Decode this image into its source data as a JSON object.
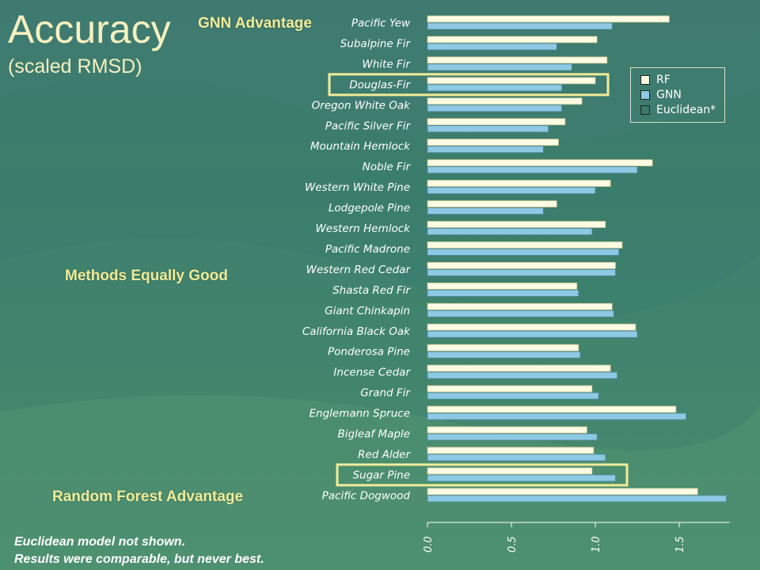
{
  "slide": {
    "title": "Accuracy",
    "subtitle": "(scaled RMSD)",
    "callouts": {
      "gnn": "GNN Advantage",
      "equal": "Methods Equally Good",
      "rf": "Random Forest Advantage"
    },
    "footnote": {
      "line1": "Euclidean model not shown.",
      "line2": "Results were comparable, but never best."
    }
  },
  "legend": {
    "entries": [
      {
        "label": "RF",
        "color": "#fdfbe3"
      },
      {
        "label": "GNN",
        "color": "#8dc9e3"
      },
      {
        "label": "Euclidean*",
        "color": "#3a7a68"
      }
    ]
  },
  "colors": {
    "rf": "#fdfbe3",
    "gnn": "#8dc9e3",
    "highlight": "#f0ec9a",
    "text_accent": "#f5f0c0"
  },
  "chart_data": {
    "type": "bar",
    "orientation": "horizontal",
    "categories": [
      "Pacific Yew",
      "Subalpine Fir",
      "White Fir",
      "Douglas-Fir",
      "Oregon White Oak",
      "Pacific Silver Fir",
      "Mountain Hemlock",
      "Noble Fir",
      "Western White Pine",
      "Lodgepole Pine",
      "Western Hemlock",
      "Pacific Madrone",
      "Western Red Cedar",
      "Shasta Red Fir",
      "Giant Chinkapin",
      "California Black Oak",
      "Ponderosa Pine",
      "Incense Cedar",
      "Grand Fir",
      "Englemann Spruce",
      "Bigleaf Maple",
      "Red Alder",
      "Sugar Pine",
      "Pacific Dogwood"
    ],
    "series": [
      {
        "name": "RF",
        "values": [
          1.44,
          1.01,
          1.07,
          1.0,
          0.92,
          0.82,
          0.78,
          1.34,
          1.09,
          0.77,
          1.06,
          1.16,
          1.12,
          0.89,
          1.1,
          1.24,
          0.9,
          1.09,
          0.98,
          1.48,
          0.95,
          0.99,
          0.98,
          1.61
        ]
      },
      {
        "name": "GNN",
        "values": [
          1.1,
          0.77,
          0.86,
          0.8,
          0.8,
          0.72,
          0.69,
          1.25,
          1.0,
          0.69,
          0.98,
          1.14,
          1.12,
          0.9,
          1.11,
          1.25,
          0.91,
          1.13,
          1.02,
          1.54,
          1.01,
          1.06,
          1.12,
          1.78
        ]
      }
    ],
    "xlim": [
      0,
      1.8
    ],
    "xticks": [
      "0.0",
      "0.5",
      "1.0",
      "1.5"
    ],
    "xtick_values": [
      0,
      0.5,
      1.0,
      1.5
    ],
    "highlighted": [
      "Douglas-Fir",
      "Sugar Pine"
    ],
    "legend_position": "top-right"
  }
}
